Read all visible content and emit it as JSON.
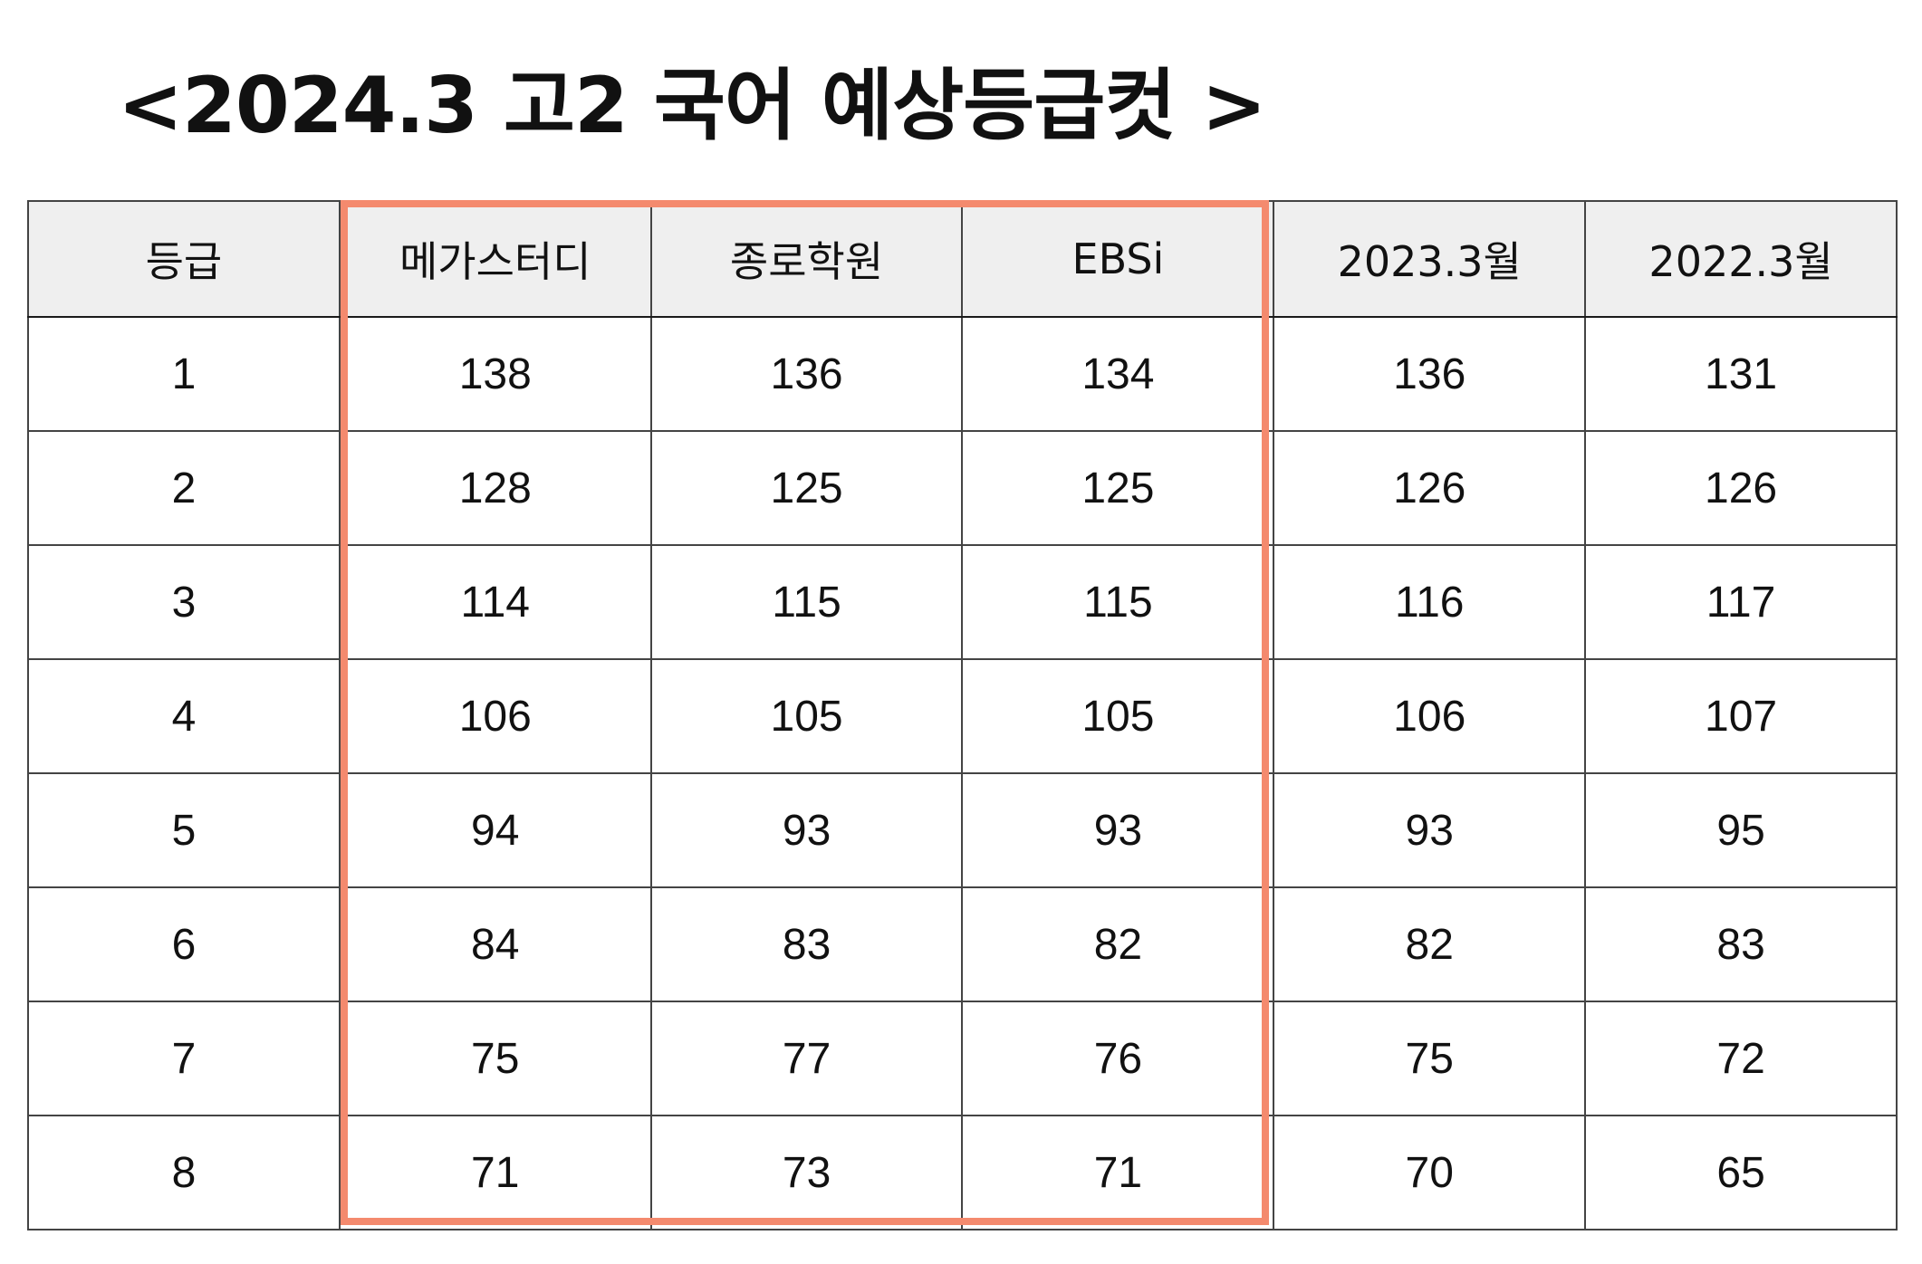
{
  "title": "<2024.3 고2 국어 예상등급컷 >",
  "highlight_color": "#f48a6e",
  "table": {
    "headers": [
      "등급",
      "메가스터디",
      "종로학원",
      "EBSi",
      "2023.3월",
      "2022.3월"
    ],
    "rows": [
      [
        "1",
        "138",
        "136",
        "134",
        "136",
        "131"
      ],
      [
        "2",
        "128",
        "125",
        "125",
        "126",
        "126"
      ],
      [
        "3",
        "114",
        "115",
        "115",
        "116",
        "117"
      ],
      [
        "4",
        "106",
        "105",
        "105",
        "106",
        "107"
      ],
      [
        "5",
        "94",
        "93",
        "93",
        "93",
        "95"
      ],
      [
        "6",
        "84",
        "83",
        "82",
        "82",
        "83"
      ],
      [
        "7",
        "75",
        "77",
        "76",
        "75",
        "72"
      ],
      [
        "8",
        "71",
        "73",
        "71",
        "70",
        "65"
      ]
    ]
  }
}
